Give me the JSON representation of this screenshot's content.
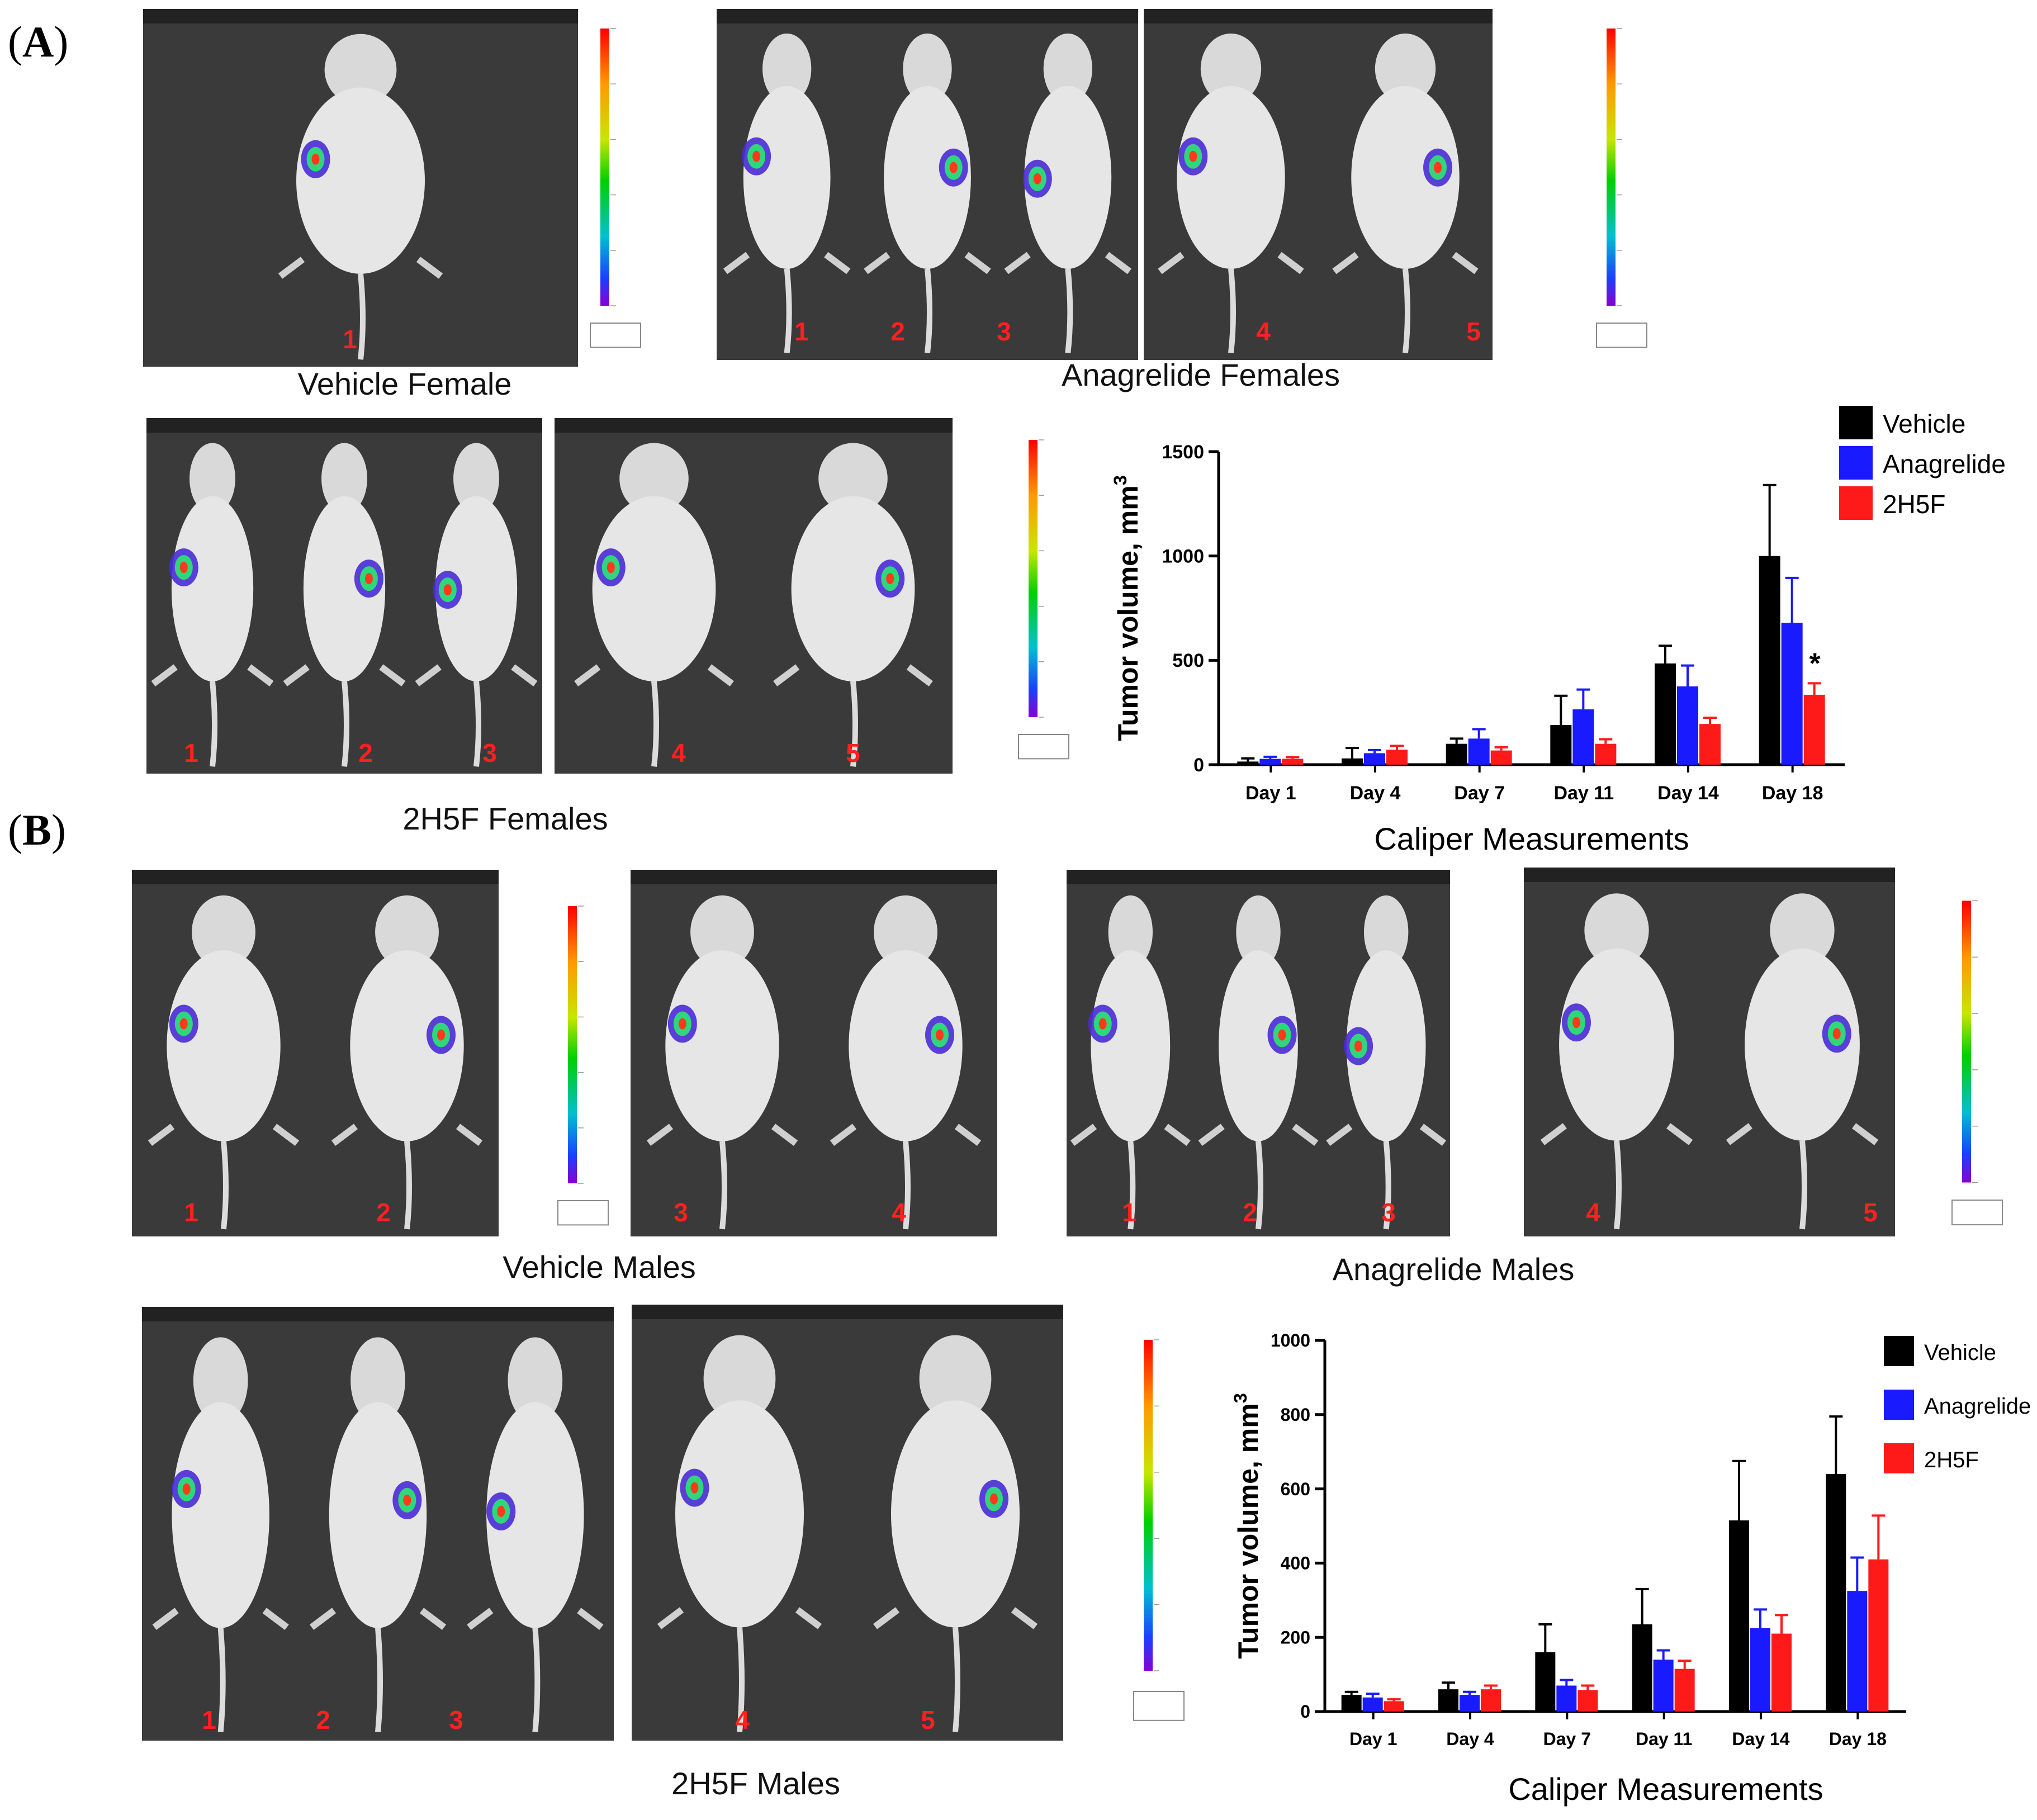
{
  "panels": {
    "a_label": "A",
    "b_label": "B"
  },
  "panel_a": {
    "vehicle_caption": "Vehicle Female",
    "anagrelide_caption": "Anagrelide Females",
    "h2h5f_caption": "2H5F Females",
    "vehicle_numbers": [
      "1"
    ],
    "anagrelide_numbers": [
      "1",
      "2",
      "3",
      "4",
      "5"
    ],
    "h2h5f_numbers": [
      "1",
      "2",
      "3",
      "4",
      "5"
    ]
  },
  "panel_b": {
    "vehicle_caption": "Vehicle Males",
    "anagrelide_caption": "Anagrelide Males",
    "h2h5f_caption": "2H5F Males",
    "vehicle_numbers": [
      "1",
      "2",
      "3",
      "4"
    ],
    "anagrelide_numbers": [
      "1",
      "2",
      "3",
      "4",
      "5"
    ],
    "h2h5f_numbers": [
      "1",
      "2",
      "3",
      "4",
      "5"
    ]
  },
  "colors": {
    "vehicle": "#000000",
    "anagrelide": "#1a1aff",
    "h2h5f": "#ff1a1a",
    "photo_bg": "#3f3f3f",
    "mouse_number": "#ff2020"
  },
  "chart_data": [
    {
      "type": "bar",
      "title": "",
      "xlabel": "Caliper Measurements",
      "ylabel": "Tumor volume, mm",
      "ylabel_superscript": "3",
      "ylim": [
        0,
        1500
      ],
      "yticks": [
        "0",
        "500",
        "1000",
        "1500"
      ],
      "categories": [
        "Day 1",
        "Day 4",
        "Day 7",
        "Day 11",
        "Day 14",
        "Day 18"
      ],
      "legend": [
        "Vehicle",
        "Anagrelide",
        "2H5F"
      ],
      "significance": [
        {
          "series": "2H5F",
          "category": "Day 18",
          "mark": "*"
        }
      ],
      "series": [
        {
          "name": "Vehicle",
          "color": "#000000",
          "values": [
            15,
            30,
            100,
            190,
            485,
            1000
          ],
          "errors": [
            15,
            50,
            25,
            140,
            85,
            340
          ]
        },
        {
          "name": "Anagrelide",
          "color": "#1a1aff",
          "values": [
            28,
            55,
            125,
            265,
            375,
            680
          ],
          "errors": [
            10,
            15,
            45,
            95,
            100,
            215
          ]
        },
        {
          "name": "2H5F",
          "color": "#ff1a1a",
          "values": [
            28,
            72,
            68,
            100,
            195,
            335
          ],
          "errors": [
            8,
            18,
            15,
            22,
            30,
            55
          ]
        }
      ]
    },
    {
      "type": "bar",
      "title": "",
      "xlabel": "Caliper Measurements",
      "ylabel": "Tumor volume, mm",
      "ylabel_superscript": "3",
      "ylim": [
        0,
        1000
      ],
      "yticks": [
        "0",
        "200",
        "400",
        "600",
        "800",
        "1000"
      ],
      "categories": [
        "Day 1",
        "Day 4",
        "Day 7",
        "Day 11",
        "Day 14",
        "Day 18"
      ],
      "legend": [
        "Vehicle",
        "Anagrelide",
        "2H5F"
      ],
      "series": [
        {
          "name": "Vehicle",
          "color": "#000000",
          "values": [
            45,
            60,
            160,
            235,
            515,
            640
          ],
          "errors": [
            8,
            18,
            75,
            95,
            160,
            155
          ]
        },
        {
          "name": "Anagrelide",
          "color": "#1a1aff",
          "values": [
            38,
            45,
            70,
            140,
            225,
            325
          ],
          "errors": [
            10,
            8,
            15,
            25,
            50,
            90
          ]
        },
        {
          "name": "2H5F",
          "color": "#ff1a1a",
          "values": [
            28,
            60,
            58,
            115,
            210,
            410
          ],
          "errors": [
            5,
            10,
            12,
            22,
            50,
            118
          ]
        }
      ]
    }
  ]
}
